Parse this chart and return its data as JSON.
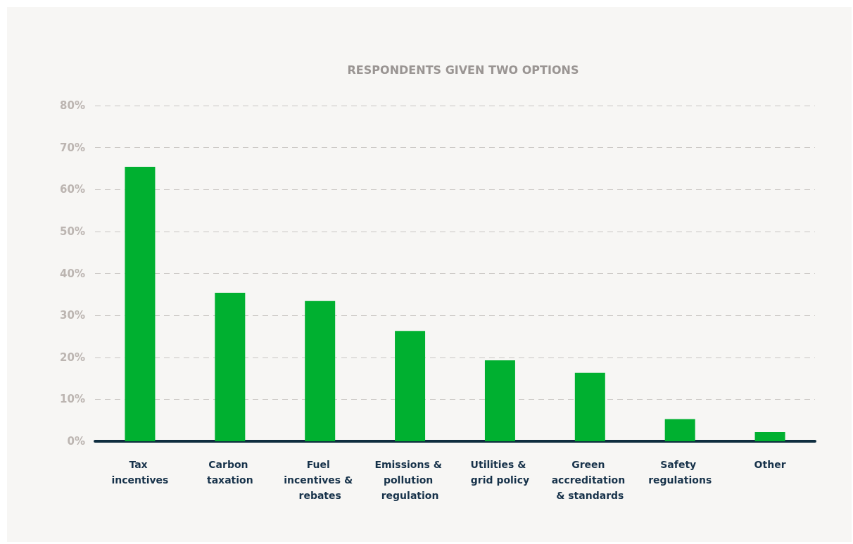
{
  "chart_data": {
    "type": "bar",
    "title": "RESPONDENTS GIVEN TWO OPTIONS",
    "categories": [
      "Tax incentives",
      "Carbon taxation",
      "Fuel incentives & rebates",
      "Emissions & pollution regulation",
      "Utilities & grid policy",
      "Green accreditation & standards",
      "Safety regulations",
      "Other"
    ],
    "values": [
      65.4,
      35.4,
      33.4,
      26.3,
      19.3,
      16.3,
      5.3,
      2.2
    ],
    "color": "#00b030",
    "ylim": [
      0,
      80
    ],
    "yticks": [
      {
        "value": 0,
        "label": "0%"
      },
      {
        "value": 10,
        "label": "10%"
      },
      {
        "value": 20,
        "label": "20%"
      },
      {
        "value": 30,
        "label": "30%"
      },
      {
        "value": 40,
        "label": "40%"
      },
      {
        "value": 50,
        "label": "50%"
      },
      {
        "value": 60,
        "label": "60%"
      },
      {
        "value": 70,
        "label": "70%"
      },
      {
        "value": 80,
        "label": "80%"
      }
    ],
    "grid": "y"
  }
}
